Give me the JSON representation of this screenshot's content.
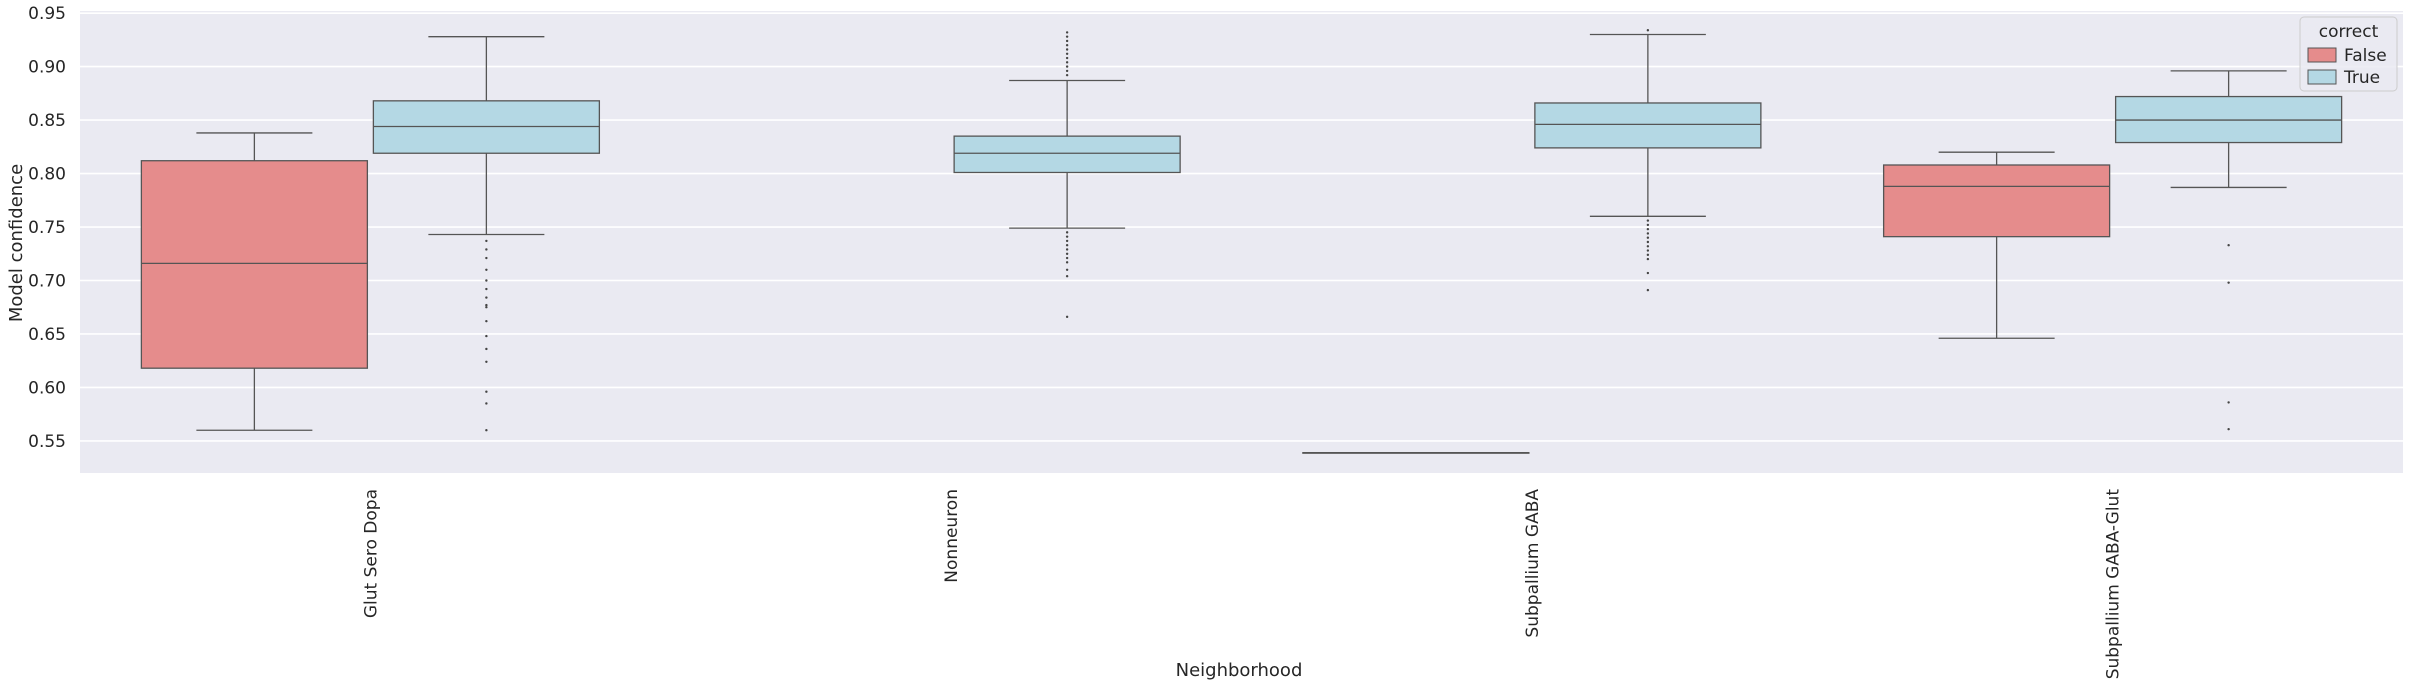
{
  "chart_data": {
    "type": "box",
    "xlabel": "Neighborhood",
    "ylabel": "Model confidence",
    "ylim": [
      0.52,
      0.952
    ],
    "yticks": [
      "0.55",
      "0.60",
      "0.65",
      "0.70",
      "0.75",
      "0.80",
      "0.85",
      "0.90",
      "0.95"
    ],
    "categories": [
      "Glut Sero Dopa",
      "Nonneuron",
      "Subpallium GABA",
      "Subpallium GABA-Glut"
    ],
    "grid": true,
    "legend": {
      "title": "correct",
      "placement": "top-right",
      "entries": [
        {
          "label": "False",
          "color": "#e58c8c"
        },
        {
          "label": "True",
          "color": "#b4d8e4"
        }
      ]
    },
    "series": [
      {
        "name": "False",
        "color": "#e58c8c",
        "boxes": [
          {
            "category": "Glut Sero Dopa",
            "whislo": 0.56,
            "q1": 0.618,
            "med": 0.716,
            "q3": 0.812,
            "whishi": 0.838,
            "fliers": []
          },
          null,
          {
            "category": "Subpallium GABA",
            "whislo": 0.539,
            "q1": 0.539,
            "med": 0.539,
            "q3": 0.539,
            "whishi": 0.539,
            "fliers": []
          },
          {
            "category": "Subpallium GABA-Glut",
            "whislo": 0.646,
            "q1": 0.741,
            "med": 0.788,
            "q3": 0.808,
            "whishi": 0.82,
            "fliers": []
          }
        ]
      },
      {
        "name": "True",
        "color": "#b4d8e4",
        "boxes": [
          {
            "category": "Glut Sero Dopa",
            "whislo": 0.743,
            "q1": 0.819,
            "med": 0.844,
            "q3": 0.868,
            "whishi": 0.928,
            "fliers": [
              0.737,
              0.729,
              0.721,
              0.71,
              0.7,
              0.692,
              0.684,
              0.677,
              0.675,
              0.662,
              0.648,
              0.636,
              0.624,
              0.596,
              0.585,
              0.56
            ]
          },
          {
            "category": "Nonneuron",
            "whislo": 0.749,
            "q1": 0.801,
            "med": 0.819,
            "q3": 0.835,
            "whishi": 0.887,
            "fliers": [
              0.932,
              0.928,
              0.924,
              0.92,
              0.916,
              0.912,
              0.908,
              0.904,
              0.9,
              0.896,
              0.892,
              0.745,
              0.741,
              0.737,
              0.733,
              0.729,
              0.725,
              0.721,
              0.717,
              0.71,
              0.704,
              0.666
            ]
          },
          {
            "category": "Subpallium GABA",
            "whislo": 0.76,
            "q1": 0.824,
            "med": 0.846,
            "q3": 0.866,
            "whishi": 0.93,
            "fliers": [
              0.934,
              0.756,
              0.752,
              0.748,
              0.744,
              0.74,
              0.736,
              0.732,
              0.728,
              0.724,
              0.72,
              0.707,
              0.691
            ]
          },
          {
            "category": "Subpallium GABA-Glut",
            "whislo": 0.787,
            "q1": 0.829,
            "med": 0.85,
            "q3": 0.872,
            "whishi": 0.896,
            "fliers": [
              0.733,
              0.698,
              0.586,
              0.561
            ]
          }
        ]
      }
    ]
  }
}
